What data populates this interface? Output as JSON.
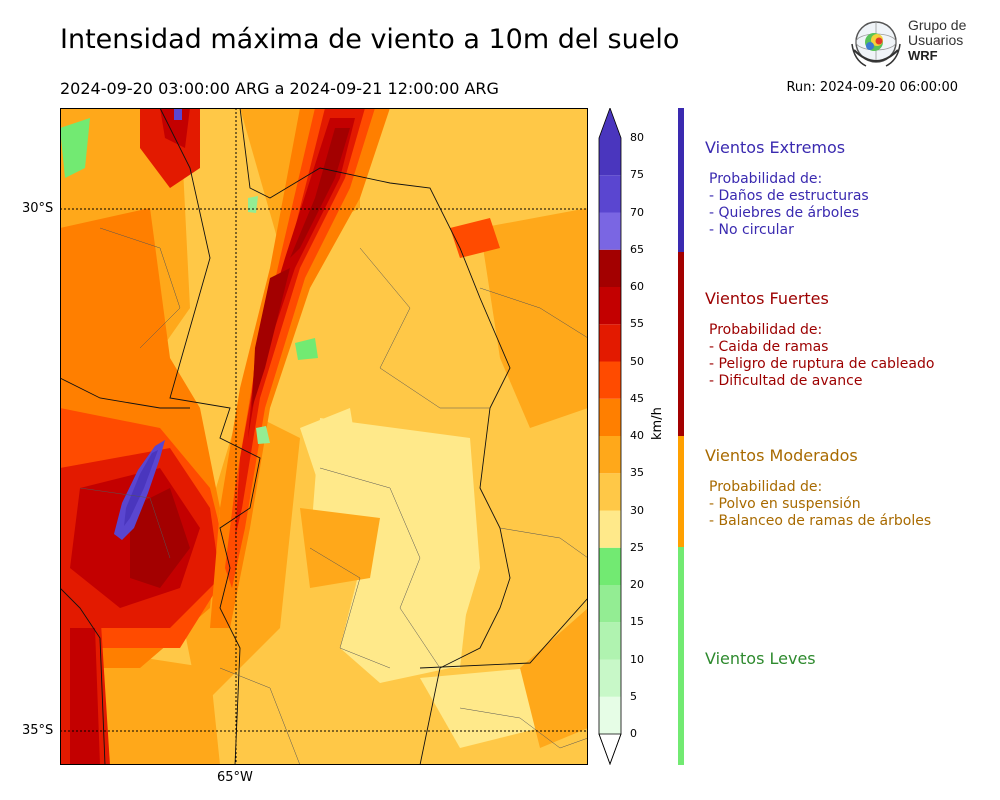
{
  "header": {
    "title": "Intensidad máxima de viento a 10m del suelo",
    "period": "2024-09-20 03:00:00 ARG  a  2024-09-21 12:00:00 ARG",
    "run": "Run: 2024-09-20 06:00:00"
  },
  "logo": {
    "line1": "Grupo de",
    "line2": "Usuarios",
    "line3": "WRF"
  },
  "map": {
    "lat_labels": [
      "30°S",
      "35°S"
    ],
    "lon_labels": [
      "65°W"
    ]
  },
  "colorbar": {
    "unit": "km/h",
    "ticks": [
      "80",
      "75",
      "70",
      "65",
      "60",
      "55",
      "50",
      "45",
      "40",
      "35",
      "30",
      "25",
      "20",
      "15",
      "10",
      "5",
      "0"
    ],
    "colors": [
      "#e6fde6",
      "#c8f8c8",
      "#b0f3b0",
      "#93ed93",
      "#72ea72",
      "#ffe98a",
      "#ffc847",
      "#ffa81a",
      "#ff7f00",
      "#ff4b00",
      "#e31a00",
      "#c30000",
      "#a30000",
      "#7a66e3",
      "#5a46d0",
      "#4a36be"
    ]
  },
  "categories": [
    {
      "name": "Vientos Extremos",
      "color": "#3a2ab0",
      "bar_color": "#3a2ab0",
      "intro": "Probabilidad de:",
      "items": [
        "- Daños de estructuras",
        "- Quiebres de árboles",
        "- No circular"
      ]
    },
    {
      "name": "Vientos Fuertes",
      "color": "#9c0000",
      "bar_color": "#a30000",
      "intro": "Probabilidad de:",
      "items": [
        "- Caida de ramas",
        "- Peligro de ruptura de cableado",
        "- Dificultad de avance"
      ]
    },
    {
      "name": "Vientos Moderados",
      "color": "#a86a00",
      "bar_color": "#ffa000",
      "intro": "Probabilidad de:",
      "items": [
        "- Polvo en suspensión",
        "- Balanceo de ramas de árboles"
      ]
    },
    {
      "name": "Vientos Leves",
      "color": "#2e8a2e",
      "bar_color": "#72ea72",
      "intro": "",
      "items": []
    }
  ]
}
